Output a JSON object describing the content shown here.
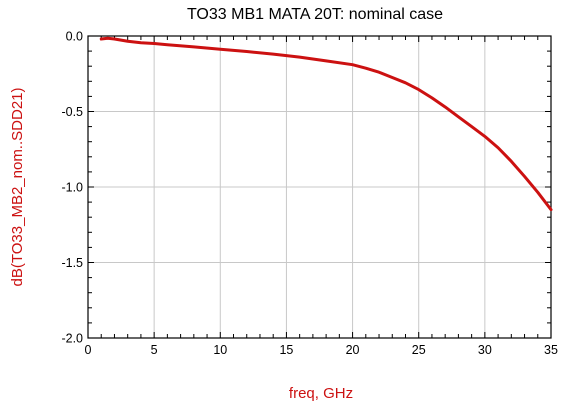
{
  "chart_data": {
    "type": "line",
    "title": "TO33 MB1 MATA 20T: nominal case",
    "xlabel": "freq, GHz",
    "ylabel": "dB(TO33_MB2_nom..SDD21)",
    "xlim": [
      0,
      35
    ],
    "ylim": [
      -2.0,
      0.0
    ],
    "x_ticks": [
      0,
      5,
      10,
      15,
      20,
      25,
      30,
      35
    ],
    "x_tick_labels": [
      "0",
      "5",
      "10",
      "15",
      "20",
      "25",
      "30",
      "35"
    ],
    "y_ticks": [
      0.0,
      -0.5,
      -1.0,
      -1.5,
      -2.0
    ],
    "y_tick_labels": [
      "0.0",
      "-0.5",
      "-1.0",
      "-1.5",
      "-2.0"
    ],
    "grid": true,
    "line_color": "#cc1111",
    "label_color": "#cc1111",
    "series": [
      {
        "x": [
          1,
          1.5,
          2,
          3,
          4,
          5,
          6,
          8,
          10,
          12,
          14,
          16,
          18,
          20,
          21,
          22,
          23,
          24,
          25,
          26,
          27,
          28,
          29,
          30,
          31,
          32,
          33,
          34,
          35
        ],
        "y": [
          -0.02,
          -0.015,
          -0.02,
          -0.035,
          -0.045,
          -0.05,
          -0.058,
          -0.072,
          -0.088,
          -0.103,
          -0.12,
          -0.14,
          -0.165,
          -0.19,
          -0.213,
          -0.24,
          -0.275,
          -0.31,
          -0.355,
          -0.41,
          -0.47,
          -0.535,
          -0.6,
          -0.665,
          -0.74,
          -0.83,
          -0.93,
          -1.035,
          -1.15
        ]
      }
    ]
  }
}
